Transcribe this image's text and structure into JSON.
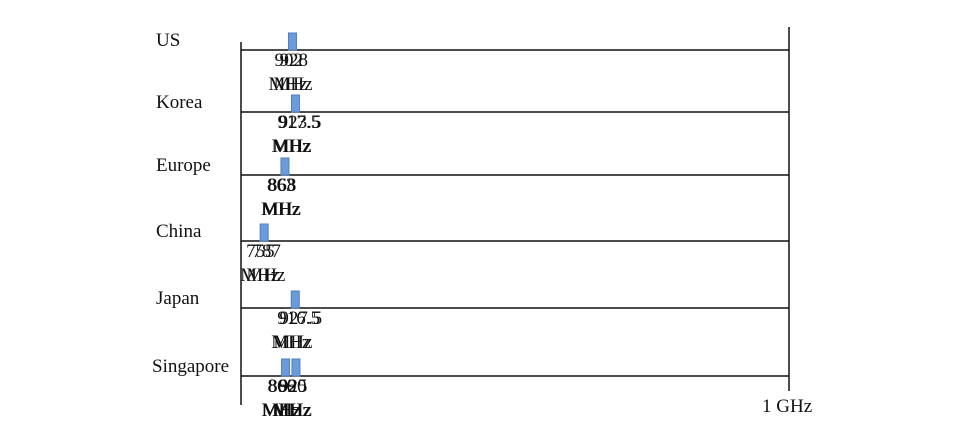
{
  "diagram": {
    "axis_end_label": "1 GHz",
    "colors": {
      "band": "#6b9bd8",
      "line": "#111111",
      "text": "#111111"
    },
    "regions": [
      {
        "name": "US",
        "bands": [
          {
            "start": "902",
            "end": "928",
            "start_unit": "MHz",
            "end_unit": "MHz"
          }
        ]
      },
      {
        "name": "Korea",
        "bands": [
          {
            "start": "917.5",
            "end": "923.5",
            "start_unit": "MHz",
            "end_unit": "MHz"
          }
        ]
      },
      {
        "name": "Europe",
        "bands": [
          {
            "start": "863",
            "end": "868",
            "start_unit": "MHz",
            "end_unit": "MHz"
          }
        ]
      },
      {
        "name": "China",
        "bands": [
          {
            "start": "755",
            "end": "787",
            "start_unit": "MHz",
            "end_unit": "MHz"
          }
        ]
      },
      {
        "name": "Japan",
        "bands": [
          {
            "start": "916.5",
            "end": "927.5",
            "start_unit": "MHz",
            "end_unit": "MHz"
          }
        ]
      },
      {
        "name": "Singapore",
        "bands": [
          {
            "start": "866",
            "end": "869",
            "start_unit": "MHz",
            "end_unit": "MHz"
          },
          {
            "start": "920",
            "end": "925",
            "start_unit": "MHz",
            "end_unit": "MHz"
          }
        ]
      }
    ]
  }
}
